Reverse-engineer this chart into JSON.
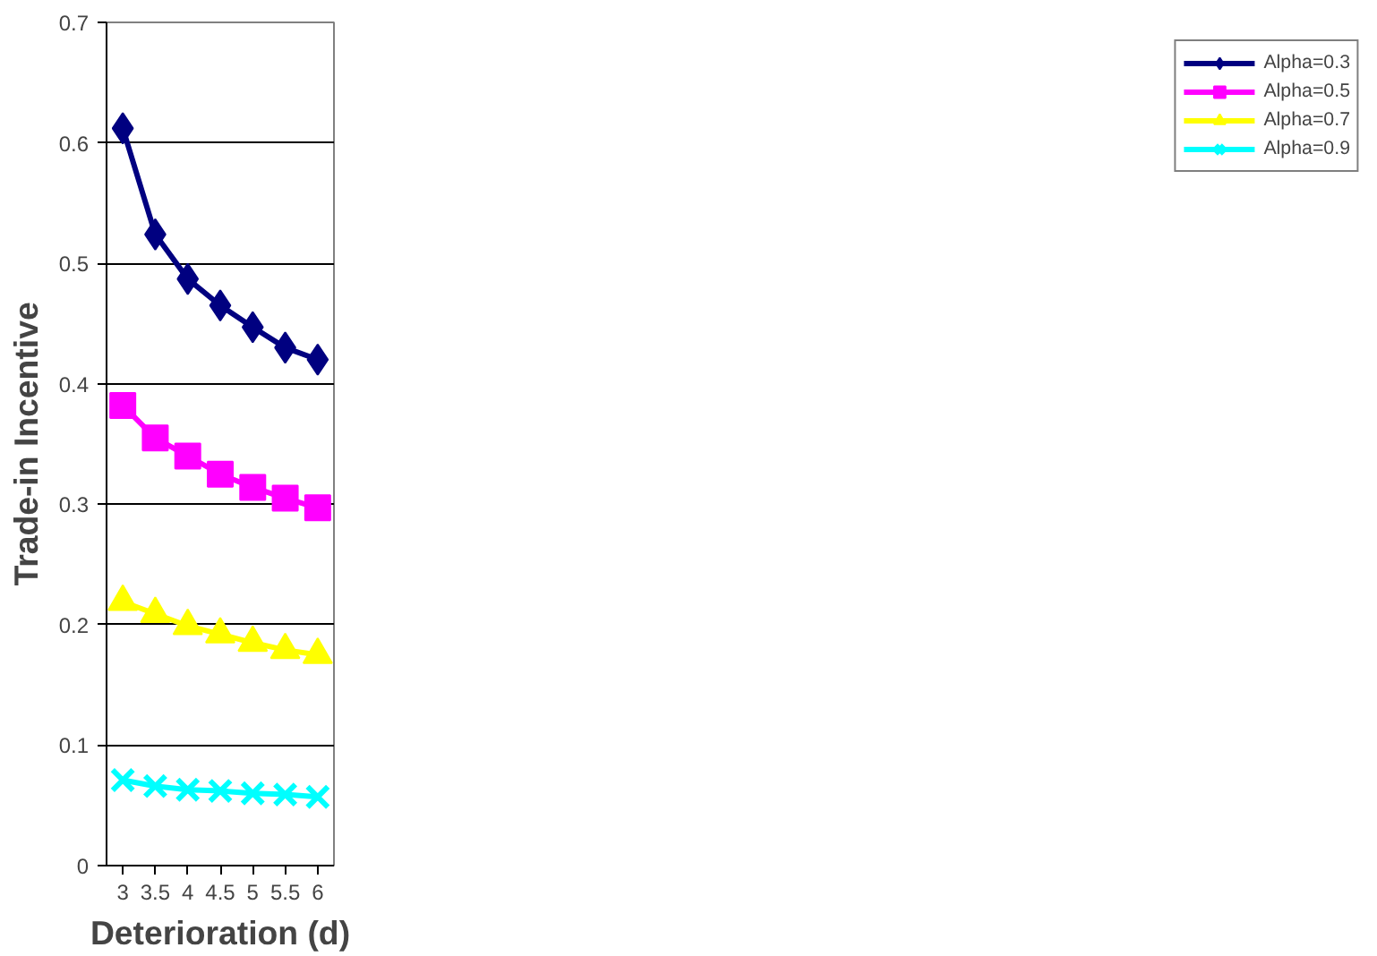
{
  "chart_data": {
    "type": "line",
    "xlabel": "Deterioration (d)",
    "ylabel": "Trade-in Incentive",
    "categories": [
      "3",
      "3.5",
      "4",
      "4.5",
      "5",
      "5.5",
      "6"
    ],
    "ylim": [
      0,
      0.7
    ],
    "yticks": [
      0,
      0.1,
      0.2,
      0.3,
      0.4,
      0.5,
      0.6,
      0.7
    ],
    "grid": "y",
    "legend": "right",
    "line_style": "solid",
    "series": [
      {
        "name": "Alpha=0.3",
        "color": "#000080",
        "marker": "diamond",
        "values": [
          0.612,
          0.524,
          0.487,
          0.465,
          0.447,
          0.43,
          0.42
        ]
      },
      {
        "name": "Alpha=0.5",
        "color": "#ff00ff",
        "marker": "square",
        "values": [
          0.382,
          0.355,
          0.34,
          0.325,
          0.314,
          0.305,
          0.297
        ]
      },
      {
        "name": "Alpha=0.7",
        "color": "#ffff00",
        "marker": "triangle",
        "values": [
          0.219,
          0.209,
          0.199,
          0.192,
          0.185,
          0.179,
          0.175
        ]
      },
      {
        "name": "Alpha=0.9",
        "color": "#00ffff",
        "marker": "x",
        "values": [
          0.071,
          0.066,
          0.063,
          0.062,
          0.06,
          0.059,
          0.057
        ]
      }
    ]
  }
}
